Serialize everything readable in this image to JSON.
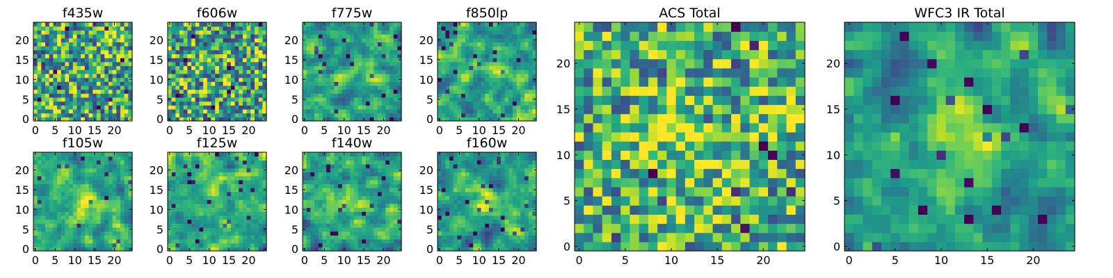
{
  "chart_data": [
    {
      "type": "heatmap",
      "title": "f435w",
      "xticks": [
        "0",
        "5",
        "10",
        "15",
        "20"
      ],
      "yticks": [
        "0",
        "5",
        "10",
        "15",
        "20"
      ],
      "xlim": [
        0,
        25
      ],
      "ylim": [
        0,
        25
      ],
      "grid": "25x25",
      "colormap": "viridis"
    },
    {
      "type": "heatmap",
      "title": "f606w",
      "xticks": [
        "0",
        "5",
        "10",
        "15",
        "20"
      ],
      "yticks": [
        "0",
        "5",
        "10",
        "15",
        "20"
      ],
      "xlim": [
        0,
        25
      ],
      "ylim": [
        0,
        25
      ],
      "grid": "25x25",
      "colormap": "viridis"
    },
    {
      "type": "heatmap",
      "title": "f775w",
      "xticks": [
        "0",
        "5",
        "10",
        "15",
        "20"
      ],
      "yticks": [
        "0",
        "5",
        "10",
        "15",
        "20"
      ],
      "xlim": [
        0,
        25
      ],
      "ylim": [
        0,
        25
      ],
      "grid": "25x25",
      "colormap": "viridis"
    },
    {
      "type": "heatmap",
      "title": "f850lp",
      "xticks": [
        "0",
        "5",
        "10",
        "15",
        "20"
      ],
      "yticks": [
        "0",
        "5",
        "10",
        "15",
        "20"
      ],
      "xlim": [
        0,
        25
      ],
      "ylim": [
        0,
        25
      ],
      "grid": "25x25",
      "colormap": "viridis"
    },
    {
      "type": "heatmap",
      "title": "f105w",
      "xticks": [
        "0",
        "5",
        "10",
        "15",
        "20"
      ],
      "yticks": [
        "0",
        "5",
        "10",
        "15",
        "20"
      ],
      "xlim": [
        0,
        25
      ],
      "ylim": [
        0,
        25
      ],
      "grid": "25x25",
      "colormap": "viridis"
    },
    {
      "type": "heatmap",
      "title": "f125w",
      "xticks": [
        "0",
        "5",
        "10",
        "15",
        "20"
      ],
      "yticks": [
        "0",
        "5",
        "10",
        "15",
        "20"
      ],
      "xlim": [
        0,
        25
      ],
      "ylim": [
        0,
        25
      ],
      "grid": "25x25",
      "colormap": "viridis"
    },
    {
      "type": "heatmap",
      "title": "f140w",
      "xticks": [
        "0",
        "5",
        "10",
        "15",
        "20"
      ],
      "yticks": [
        "0",
        "5",
        "10",
        "15",
        "20"
      ],
      "xlim": [
        0,
        25
      ],
      "ylim": [
        0,
        25
      ],
      "grid": "25x25",
      "colormap": "viridis"
    },
    {
      "type": "heatmap",
      "title": "f160w",
      "xticks": [
        "0",
        "5",
        "10",
        "15",
        "20"
      ],
      "yticks": [
        "0",
        "5",
        "10",
        "15",
        "20"
      ],
      "xlim": [
        0,
        25
      ],
      "ylim": [
        0,
        25
      ],
      "grid": "25x25",
      "colormap": "viridis"
    },
    {
      "type": "heatmap",
      "title": "ACS Total",
      "xticks": [
        "0",
        "5",
        "10",
        "15",
        "20"
      ],
      "yticks": [
        "0",
        "5",
        "10",
        "15",
        "20"
      ],
      "xlim": [
        0,
        25
      ],
      "ylim": [
        0,
        25
      ],
      "grid": "25x25",
      "colormap": "viridis"
    },
    {
      "type": "heatmap",
      "title": "WFC3 IR Total",
      "xticks": [
        "0",
        "5",
        "10",
        "15",
        "20"
      ],
      "yticks": [
        "0",
        "5",
        "10",
        "15",
        "20"
      ],
      "xlim": [
        0,
        25
      ],
      "ylim": [
        0,
        25
      ],
      "grid": "25x25",
      "colormap": "viridis"
    }
  ],
  "colors": {
    "low": "#440154",
    "mid_low": "#31688e",
    "mid": "#35b779",
    "high": "#fde725"
  }
}
